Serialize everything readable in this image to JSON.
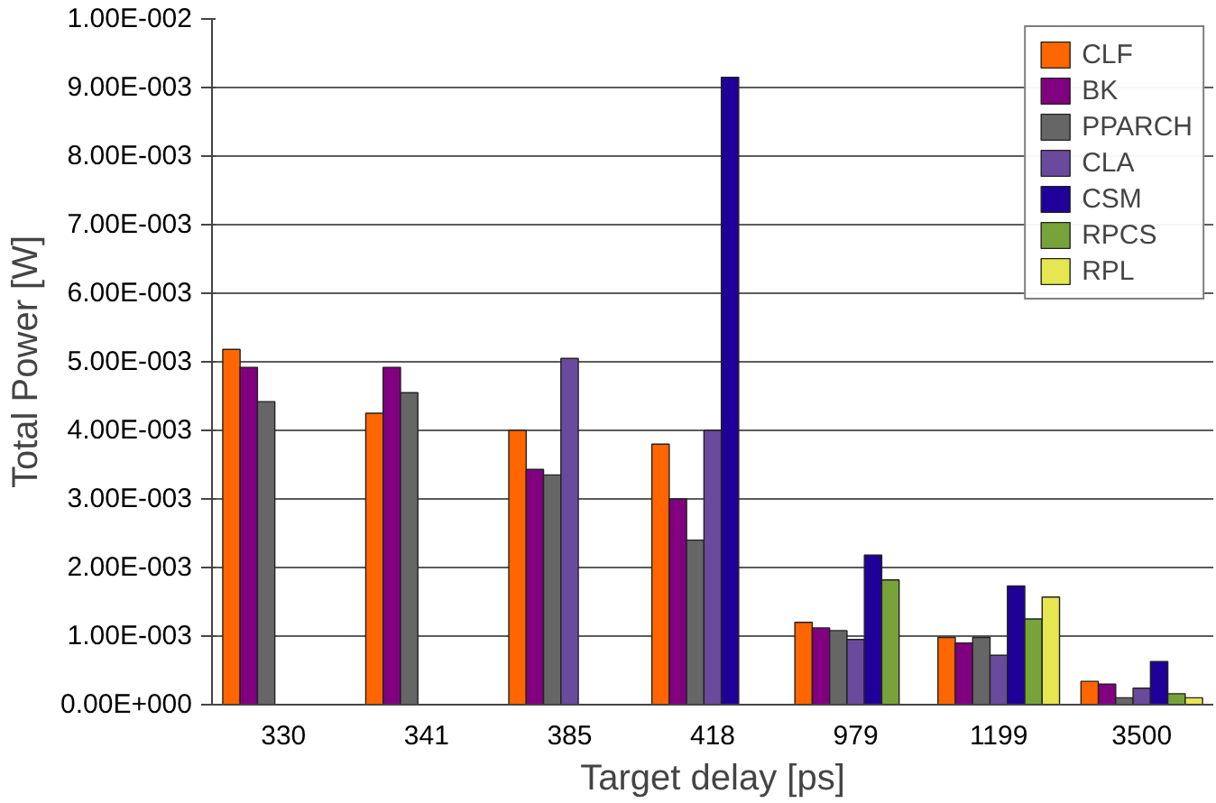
{
  "chart_data": {
    "type": "bar",
    "xlabel": "Target delay [ps]",
    "ylabel": "Total Power [W]",
    "categories": [
      "330",
      "341",
      "385",
      "418",
      "979",
      "1199",
      "3500"
    ],
    "series": [
      {
        "name": "CLF",
        "color": "#ff6600",
        "values": [
          0.00518,
          0.00425,
          0.004,
          0.0038,
          0.0012,
          0.00098,
          0.00034
        ]
      },
      {
        "name": "BK",
        "color": "#800080",
        "values": [
          0.00492,
          0.00492,
          0.00343,
          0.003,
          0.00112,
          0.0009,
          0.0003
        ]
      },
      {
        "name": "PPARCH",
        "color": "#666666",
        "values": [
          0.00442,
          0.00455,
          0.00335,
          0.0024,
          0.00108,
          0.00098,
          0.0001
        ]
      },
      {
        "name": "CLA",
        "color": "#6a4a9c",
        "values": [
          null,
          null,
          0.00505,
          0.004,
          0.00095,
          0.00072,
          0.00024
        ]
      },
      {
        "name": "CSM",
        "color": "#1f0099",
        "values": [
          null,
          null,
          null,
          0.00915,
          0.00218,
          0.00173,
          0.00063
        ]
      },
      {
        "name": "RPCS",
        "color": "#77a33a",
        "values": [
          null,
          null,
          null,
          null,
          0.00182,
          0.00125,
          0.00016
        ]
      },
      {
        "name": "RPL",
        "color": "#e6e650",
        "values": [
          null,
          null,
          null,
          null,
          null,
          0.00157,
          0.0001
        ]
      }
    ],
    "ylim": [
      0,
      0.01
    ],
    "yticks": [
      {
        "value": 0,
        "label": "0.00E+000"
      },
      {
        "value": 0.001,
        "label": "1.00E-003"
      },
      {
        "value": 0.002,
        "label": "2.00E-003"
      },
      {
        "value": 0.003,
        "label": "3.00E-003"
      },
      {
        "value": 0.004,
        "label": "4.00E-003"
      },
      {
        "value": 0.005,
        "label": "5.00E-003"
      },
      {
        "value": 0.006,
        "label": "6.00E-003"
      },
      {
        "value": 0.007,
        "label": "7.00E-003"
      },
      {
        "value": 0.008,
        "label": "8.00E-003"
      },
      {
        "value": 0.009,
        "label": "9.00E-003"
      },
      {
        "value": 0.01,
        "label": "1.00E-002"
      }
    ],
    "grid": "y",
    "legend": "top right"
  }
}
